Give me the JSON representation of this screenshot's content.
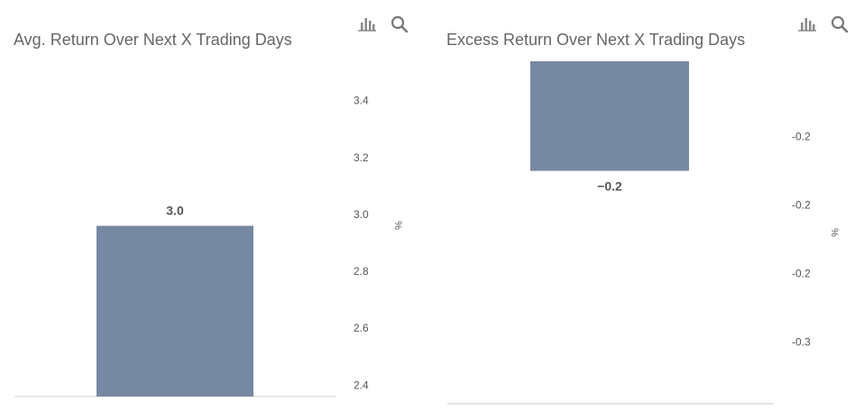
{
  "colors": {
    "bar": "#7788a2",
    "baseline": "#cccccc",
    "icon": "#888888",
    "text": "#555555"
  },
  "chart_data": [
    {
      "type": "bar",
      "title": "Avg. Return Over Next X Trading Days",
      "ylabel": "%",
      "ylim": [
        2.36,
        3.57
      ],
      "yticks": [
        {
          "value": 3.4,
          "label": "3.4"
        },
        {
          "value": 3.2,
          "label": "3.2"
        },
        {
          "value": 3.0,
          "label": "3.0"
        },
        {
          "value": 2.8,
          "label": "2.8"
        },
        {
          "value": 2.6,
          "label": "2.6"
        },
        {
          "value": 2.4,
          "label": "2.4"
        }
      ],
      "values": [
        2.96
      ],
      "data_labels": [
        "3.0"
      ],
      "icons": [
        "bar-chart-icon",
        "search-icon"
      ]
    },
    {
      "type": "bar",
      "title": "Excess Return Over Next X Trading Days",
      "ylabel": "%",
      "ylim": [
        -0.336,
        -0.136
      ],
      "yticks": [
        {
          "value": -0.18,
          "label": "-0.2"
        },
        {
          "value": -0.22,
          "label": "-0.2"
        },
        {
          "value": -0.26,
          "label": "-0.2"
        },
        {
          "value": -0.3,
          "label": "-0.3"
        }
      ],
      "values": [
        -0.2
      ],
      "data_labels": [
        "−0.2"
      ],
      "icons": [
        "bar-chart-icon",
        "search-icon"
      ]
    }
  ]
}
